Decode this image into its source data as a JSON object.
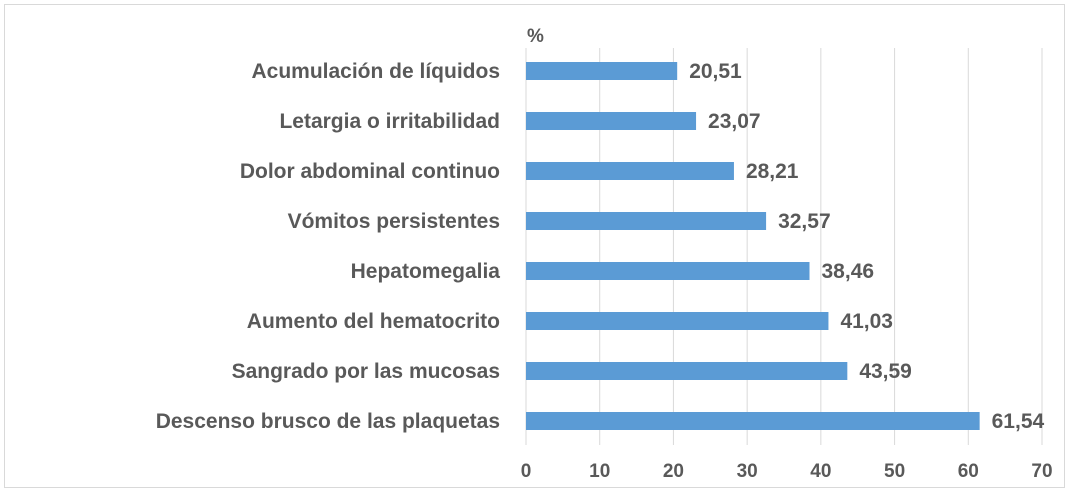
{
  "chart_data": {
    "type": "bar",
    "orientation": "horizontal",
    "unit_label": "%",
    "categories": [
      "Acumulación de líquidos",
      "Letargia o irritabilidad",
      "Dolor abdominal continuo",
      "Vómitos persistentes",
      "Hepatomegalia",
      "Aumento del hematocrito",
      "Sangrado por las mucosas",
      "Descenso brusco de las plaquetas"
    ],
    "values": [
      20.51,
      23.07,
      28.21,
      32.57,
      38.46,
      41.03,
      43.59,
      61.54
    ],
    "value_labels": [
      "20,51",
      "23,07",
      "28,21",
      "32,57",
      "38,46",
      "41,03",
      "43,59",
      "61,54"
    ],
    "xlim": [
      0,
      70
    ],
    "xticks": [
      "0",
      "10",
      "20",
      "30",
      "40",
      "50",
      "60",
      "70"
    ],
    "grid": true,
    "bar_color": "#5b9bd5",
    "text_color": "#595959",
    "grid_color": "#d9d9d9"
  }
}
